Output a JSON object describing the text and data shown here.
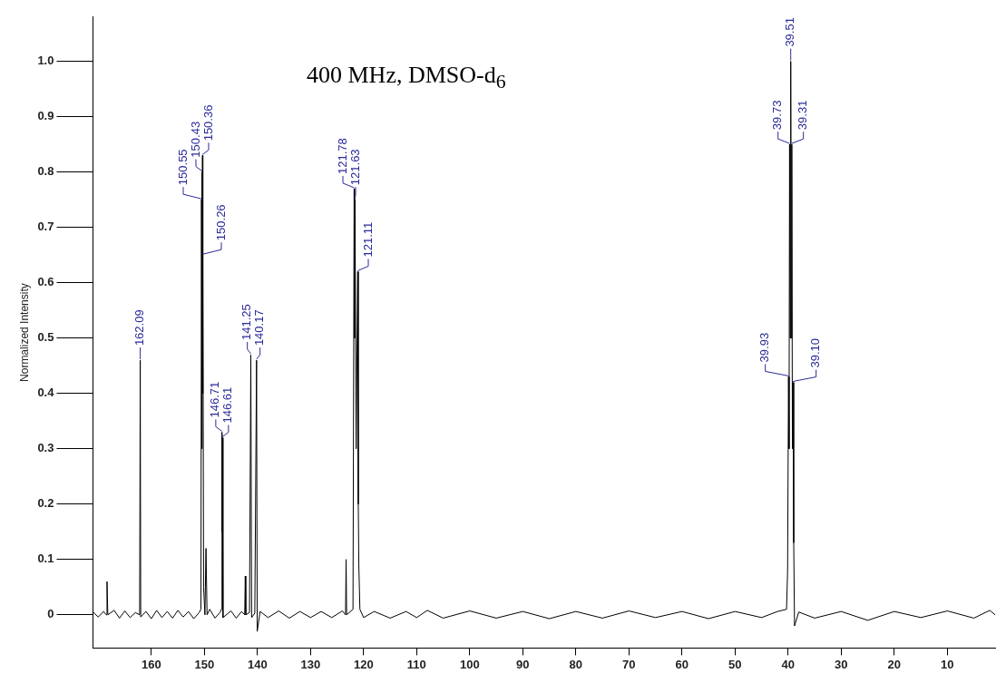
{
  "chart_data": {
    "type": "line",
    "title": "400 MHz, DMSO-d$_{6}$",
    "ylabel": "Normalized Intensity",
    "xlim": [
      171,
      1
    ],
    "xticks": [
      160,
      150,
      140,
      130,
      120,
      110,
      100,
      90,
      80,
      70,
      60,
      50,
      40,
      30,
      20,
      10
    ],
    "ylim": [
      -0.06,
      1.08
    ],
    "yticks": [
      0,
      0.1,
      0.2,
      0.3,
      0.4,
      0.5,
      0.6,
      0.7,
      0.8,
      0.9,
      {
        "value": 1,
        "label": "1.0"
      }
    ],
    "grid": false,
    "legend": false,
    "marker": "none",
    "line_style": "solid",
    "series": [
      {
        "color": "#000000",
        "x": [
          171,
          170,
          169,
          168.5,
          168.35,
          168.2,
          167,
          166,
          165,
          164,
          163,
          162.2,
          162.09,
          162,
          161,
          160,
          159,
          158,
          157,
          156,
          155,
          154,
          153,
          152,
          151,
          150.65,
          150.55,
          150.5,
          150.43,
          150.4,
          150.36,
          150.32,
          150.26,
          150.15,
          149.9,
          149.7,
          149.5,
          149,
          148,
          147,
          146.8,
          146.71,
          146.66,
          146.61,
          146.5,
          145,
          144,
          143,
          142.4,
          142.3,
          142.2,
          141.5,
          141.25,
          141.1,
          140.5,
          140.17,
          140.05,
          139.5,
          138,
          136,
          134,
          132,
          130,
          128,
          126,
          124,
          123.4,
          123.3,
          123.2,
          122,
          121.78,
          121.7,
          121.63,
          121.4,
          121.11,
          121,
          120.9,
          120.7,
          120,
          118,
          115,
          112,
          110,
          108,
          105,
          100,
          95,
          90,
          85,
          80,
          75,
          70,
          65,
          60,
          55,
          50,
          45,
          42,
          40.3,
          40.1,
          39.93,
          39.83,
          39.73,
          39.62,
          39.51,
          39.41,
          39.31,
          39.2,
          39.1,
          38.95,
          38.8,
          38,
          35,
          30,
          25,
          20,
          15,
          10,
          5,
          2,
          1
        ],
        "values": [
          0.005,
          -0.004,
          0.006,
          0,
          0.06,
          0,
          0.008,
          -0.006,
          0.007,
          -0.005,
          0.004,
          0,
          0.46,
          -0.004,
          0.006,
          -0.007,
          0.008,
          -0.005,
          0.006,
          -0.006,
          0.008,
          -0.004,
          0.006,
          -0.007,
          0.004,
          0.01,
          0.75,
          0.3,
          0.8,
          0.5,
          0.83,
          0.4,
          0.65,
          0.05,
          0,
          0.12,
          0,
          0.01,
          -0.006,
          0.005,
          0.01,
          0.33,
          0.15,
          0.32,
          -0.005,
          0.007,
          -0.006,
          0.006,
          0,
          0.07,
          0,
          0.004,
          0.47,
          -0.005,
          0.003,
          0.46,
          -0.03,
          0.006,
          -0.005,
          0.007,
          -0.006,
          0.006,
          -0.005,
          0.006,
          -0.005,
          0.007,
          0,
          0.1,
          0,
          0.01,
          0.77,
          0.5,
          0.75,
          0.3,
          0.62,
          0.2,
          0.09,
          0.01,
          -0.005,
          0.006,
          -0.006,
          0.006,
          -0.005,
          0.008,
          -0.006,
          0.007,
          -0.006,
          0.006,
          -0.007,
          0.006,
          -0.006,
          0.007,
          -0.005,
          0.006,
          -0.007,
          0.006,
          -0.005,
          0.006,
          0.01,
          0.08,
          0.43,
          0.3,
          0.85,
          0.5,
          1,
          0.5,
          0.85,
          0.3,
          0.42,
          0.13,
          -0.02,
          0.005,
          -0.006,
          0.006,
          -0.01,
          0.006,
          -0.005,
          0.007,
          -0.006,
          0.008,
          0
        ]
      }
    ],
    "annotations": [
      {
        "text": "162.09",
        "x": 162.09,
        "y": 0.46
      },
      {
        "text": "150.55",
        "x": 150.55,
        "y": 0.75
      },
      {
        "text": "150.43",
        "x": 150.43,
        "y": 0.8
      },
      {
        "text": "150.36",
        "x": 150.36,
        "y": 0.83
      },
      {
        "text": "150.26",
        "x": 150.26,
        "y": 0.65
      },
      {
        "text": "146.71",
        "x": 146.71,
        "y": 0.33
      },
      {
        "text": "146.61",
        "x": 146.61,
        "y": 0.32
      },
      {
        "text": "141.25",
        "x": 141.25,
        "y": 0.47
      },
      {
        "text": "140.17",
        "x": 140.17,
        "y": 0.46
      },
      {
        "text": "121.78",
        "x": 121.78,
        "y": 0.77
      },
      {
        "text": "121.63",
        "x": 121.63,
        "y": 0.75
      },
      {
        "text": "121.11",
        "x": 121.11,
        "y": 0.62
      },
      {
        "text": "39.93",
        "x": 39.93,
        "y": 0.43
      },
      {
        "text": "39.73",
        "x": 39.73,
        "y": 0.85
      },
      {
        "text": "39.51",
        "x": 39.51,
        "y": 1
      },
      {
        "text": "39.31",
        "x": 39.31,
        "y": 0.85
      },
      {
        "text": "39.10",
        "x": 39.1,
        "y": 0.42
      }
    ]
  }
}
